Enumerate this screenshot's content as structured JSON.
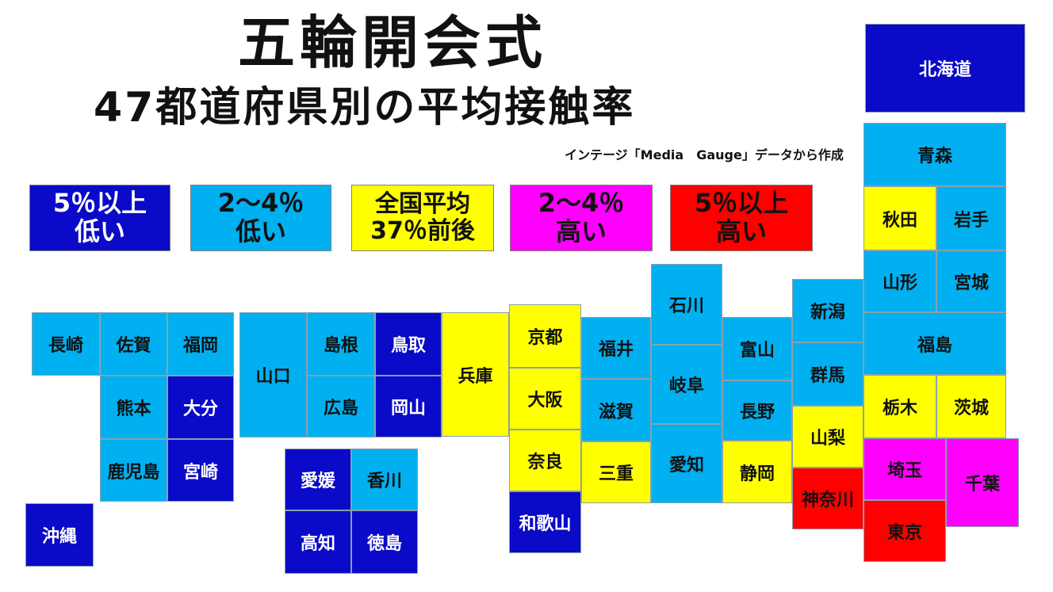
{
  "title": "五輪開会式",
  "subtitle": "47都道府県別の平均接触率",
  "source": "インテージ「Media　Gauge」データから作成",
  "colors": {
    "much_lower": "#0a0ac8",
    "lower": "#00b0f0",
    "average": "#ffff00",
    "higher": "#ff00ff",
    "much_higher": "#ff0000"
  },
  "legend": [
    {
      "category": "much_lower",
      "line1": "5％以上",
      "line2": "低い"
    },
    {
      "category": "lower",
      "line1": "2～4％",
      "line2": "低い"
    },
    {
      "category": "average",
      "line1": "全国平均",
      "line2": "37％前後"
    },
    {
      "category": "higher",
      "line1": "2～4％",
      "line2": "高い"
    },
    {
      "category": "much_higher",
      "line1": "5％以上",
      "line2": "高い"
    }
  ],
  "prefectures": [
    {
      "name": "北海道",
      "category": "much_lower"
    },
    {
      "name": "青森",
      "category": "lower"
    },
    {
      "name": "秋田",
      "category": "average"
    },
    {
      "name": "岩手",
      "category": "lower"
    },
    {
      "name": "山形",
      "category": "lower"
    },
    {
      "name": "宮城",
      "category": "lower"
    },
    {
      "name": "福島",
      "category": "lower"
    },
    {
      "name": "新潟",
      "category": "lower"
    },
    {
      "name": "群馬",
      "category": "lower"
    },
    {
      "name": "栃木",
      "category": "average"
    },
    {
      "name": "茨城",
      "category": "average"
    },
    {
      "name": "山梨",
      "category": "average"
    },
    {
      "name": "埼玉",
      "category": "higher"
    },
    {
      "name": "千葉",
      "category": "higher"
    },
    {
      "name": "神奈川",
      "category": "much_higher"
    },
    {
      "name": "東京",
      "category": "much_higher"
    },
    {
      "name": "石川",
      "category": "lower"
    },
    {
      "name": "富山",
      "category": "lower"
    },
    {
      "name": "岐阜",
      "category": "lower"
    },
    {
      "name": "長野",
      "category": "lower"
    },
    {
      "name": "愛知",
      "category": "lower"
    },
    {
      "name": "静岡",
      "category": "average"
    },
    {
      "name": "福井",
      "category": "lower"
    },
    {
      "name": "滋賀",
      "category": "lower"
    },
    {
      "name": "三重",
      "category": "average"
    },
    {
      "name": "京都",
      "category": "average"
    },
    {
      "name": "大阪",
      "category": "average"
    },
    {
      "name": "奈良",
      "category": "average"
    },
    {
      "name": "和歌山",
      "category": "much_lower"
    },
    {
      "name": "兵庫",
      "category": "average"
    },
    {
      "name": "鳥取",
      "category": "much_lower"
    },
    {
      "name": "島根",
      "category": "lower"
    },
    {
      "name": "岡山",
      "category": "much_lower"
    },
    {
      "name": "広島",
      "category": "lower"
    },
    {
      "name": "山口",
      "category": "lower"
    },
    {
      "name": "香川",
      "category": "lower"
    },
    {
      "name": "愛媛",
      "category": "much_lower"
    },
    {
      "name": "徳島",
      "category": "much_lower"
    },
    {
      "name": "高知",
      "category": "much_lower"
    },
    {
      "name": "福岡",
      "category": "lower"
    },
    {
      "name": "佐賀",
      "category": "lower"
    },
    {
      "name": "長崎",
      "category": "lower"
    },
    {
      "name": "熊本",
      "category": "lower"
    },
    {
      "name": "大分",
      "category": "much_lower"
    },
    {
      "name": "宮崎",
      "category": "much_lower"
    },
    {
      "name": "鹿児島",
      "category": "lower"
    },
    {
      "name": "沖縄",
      "category": "much_lower"
    }
  ]
}
